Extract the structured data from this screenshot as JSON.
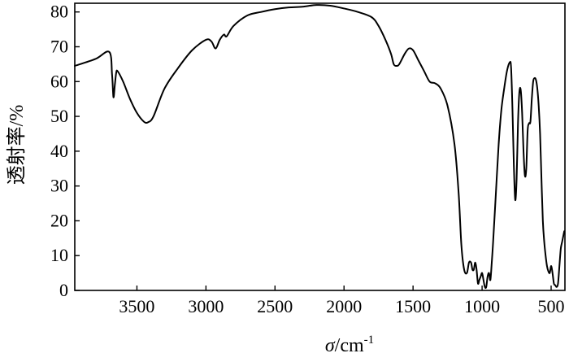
{
  "chart_data": {
    "type": "line",
    "title": "",
    "xlabel_symbol": "σ",
    "xlabel_unit": "/cm",
    "xlabel_sup": "-1",
    "ylabel": "透射率/%",
    "xlim": [
      3950,
      400
    ],
    "ylim": [
      0,
      82.5
    ],
    "x_reversed": true,
    "grid": false,
    "x_ticks": [
      3500,
      3000,
      2500,
      2000,
      1500,
      1000,
      500
    ],
    "y_ticks": [
      0,
      10,
      20,
      30,
      40,
      50,
      60,
      70,
      80
    ],
    "series": [
      {
        "color": "#000000",
        "x": [
          3950,
          3800,
          3700,
          3680,
          3670,
          3660,
          3650,
          3640,
          3600,
          3550,
          3500,
          3450,
          3420,
          3380,
          3300,
          3200,
          3100,
          3000,
          2960,
          2930,
          2900,
          2870,
          2850,
          2800,
          2700,
          2600,
          2500,
          2400,
          2300,
          2200,
          2100,
          2000,
          1900,
          1800,
          1750,
          1700,
          1660,
          1640,
          1620,
          1600,
          1560,
          1530,
          1500,
          1460,
          1420,
          1380,
          1340,
          1300,
          1250,
          1200,
          1170,
          1150,
          1130,
          1110,
          1095,
          1080,
          1070,
          1060,
          1050,
          1040,
          1030,
          1020,
          1010,
          1000,
          990,
          980,
          970,
          960,
          950,
          940,
          930,
          920,
          900,
          880,
          860,
          840,
          820,
          800,
          790,
          780,
          770,
          760,
          750,
          740,
          730,
          720,
          710,
          700,
          690,
          680,
          670,
          660,
          650,
          640,
          630,
          620,
          610,
          600,
          590,
          580,
          570,
          560,
          550,
          540,
          530,
          520,
          510,
          500,
          490,
          480,
          470,
          460,
          450,
          440,
          430,
          420,
          410,
          405
        ],
        "y": [
          64.5,
          66.5,
          68.5,
          62,
          55.5,
          59,
          62.5,
          63,
          60,
          55,
          51,
          48.5,
          48.3,
          50,
          58,
          64,
          69,
          72,
          71.5,
          69.5,
          72,
          73.5,
          73,
          76,
          79,
          80,
          80.8,
          81.3,
          81.5,
          82,
          81.8,
          81,
          80,
          78.5,
          76,
          72,
          68,
          65,
          64.5,
          65,
          68,
          69.5,
          69,
          66,
          63,
          60,
          59.5,
          58,
          53,
          42,
          28,
          13,
          6,
          5,
          8,
          8,
          6,
          6,
          8,
          6,
          2,
          3,
          4,
          5,
          3,
          1,
          1,
          4,
          5,
          3,
          8,
          14,
          28,
          42,
          52,
          58,
          63,
          65.5,
          64,
          52,
          36,
          26,
          32,
          48,
          57,
          57.5,
          51,
          40,
          33,
          35,
          46,
          48,
          48.5,
          55,
          60,
          61,
          60.5,
          58,
          53,
          45,
          32,
          20,
          14,
          10,
          7,
          5.5,
          5,
          7,
          5,
          2,
          1.5,
          1,
          2,
          7,
          12,
          14,
          16,
          17
        ]
      }
    ]
  }
}
